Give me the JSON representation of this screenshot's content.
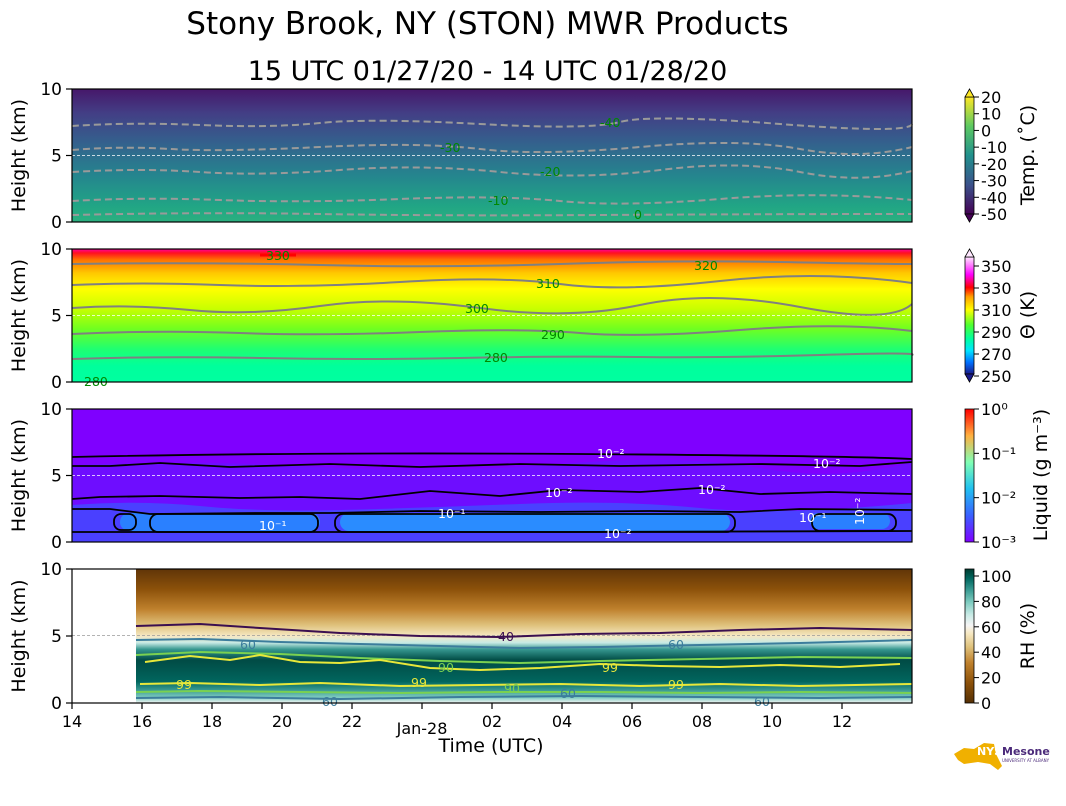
{
  "chart_data": [
    {
      "type": "heatmap",
      "name": "temperature",
      "title": "",
      "xlabel": "",
      "ylabel": "Height (km)",
      "ylim": [
        0,
        10
      ],
      "yticks": [
        "0",
        "5",
        "10"
      ],
      "colorbar_label": "Temp. (˚C)",
      "colorbar_ticks": [
        "20",
        "10",
        "0",
        "-10",
        "-20",
        "-30",
        "-40",
        "-50"
      ],
      "colorbar_range": [
        -50,
        20
      ],
      "contours": [
        {
          "label": "-40",
          "height_km": 7.3
        },
        {
          "label": "-30",
          "height_km": 5.5
        },
        {
          "label": "-20",
          "height_km": 3.8
        },
        {
          "label": "-10",
          "height_km": 1.5
        },
        {
          "label": "0",
          "height_km": 0.4
        }
      ]
    },
    {
      "type": "heatmap",
      "name": "potential_temperature",
      "ylabel": "Height (km)",
      "ylim": [
        0,
        10
      ],
      "yticks": [
        "0",
        "5",
        "10"
      ],
      "colorbar_label": "Θ (K)",
      "colorbar_ticks": [
        "350",
        "330",
        "310",
        "290",
        "270",
        "250"
      ],
      "colorbar_range": [
        250,
        360
      ],
      "contours": [
        {
          "label": "330",
          "height_km": 9.6
        },
        {
          "label": "320",
          "height_km": 8.8
        },
        {
          "label": "310",
          "height_km": 7.4
        },
        {
          "label": "300",
          "height_km": 5.5
        },
        {
          "label": "290",
          "height_km": 3.6
        },
        {
          "label": "280",
          "height_km": 1.9
        },
        {
          "label": "280",
          "height_km": 0.0
        }
      ]
    },
    {
      "type": "heatmap",
      "name": "liquid",
      "ylabel": "Height (km)",
      "ylim": [
        0,
        10
      ],
      "yticks": [
        "0",
        "5",
        "10"
      ],
      "colorbar_label": "Liquid (g m⁻³)",
      "colorbar_ticks": [
        "10⁰",
        "10⁻¹",
        "10⁻²",
        "10⁻³"
      ],
      "colorbar_scale": "log",
      "contour_labels": [
        "10⁻²",
        "10⁻²",
        "10⁻²",
        "10⁻²",
        "10⁻¹",
        "10⁻¹",
        "10⁻²",
        "10⁻¹",
        "10⁻²"
      ]
    },
    {
      "type": "heatmap",
      "name": "relative_humidity",
      "ylabel": "Height (km)",
      "ylim": [
        0,
        10
      ],
      "yticks": [
        "0",
        "5",
        "10"
      ],
      "xlabel": "Time (UTC)",
      "xticks": [
        "14",
        "16",
        "18",
        "20",
        "22",
        "Jan-28",
        "02",
        "04",
        "06",
        "08",
        "10",
        "12"
      ],
      "colorbar_label": "RH (%)",
      "colorbar_ticks": [
        "100",
        "80",
        "60",
        "40",
        "20",
        "0"
      ],
      "colorbar_range": [
        0,
        105
      ],
      "data_start": "16",
      "contour_labels": [
        "40",
        "60",
        "60",
        "90",
        "99",
        "99",
        "99",
        "99",
        "90",
        "60",
        "60",
        "60"
      ]
    }
  ],
  "figure": {
    "title": "Stony Brook, NY (STON) MWR Products",
    "subtitle": "15 UTC 01/27/20 - 14 UTC 01/28/20",
    "logo_text": "NYS Mesonet",
    "logo_subtext": "UNIVERSITY AT ALBANY",
    "colors": {
      "temp": [
        "#440154",
        "#3b528b",
        "#21908d",
        "#5dc962",
        "#fde725"
      ],
      "theta": [
        "#1a237e",
        "#00e5ff",
        "#00ffaa",
        "#7cfc00",
        "#ffff00",
        "#ff8c00",
        "#ff0000",
        "#ff00ff",
        "#ffe6ff"
      ],
      "liquid": [
        "#7f00ff",
        "#3060ff",
        "#20c0f0",
        "#80ffb0",
        "#ffb040",
        "#ff0000"
      ],
      "rh": [
        "#543005",
        "#8c510a",
        "#bf812d",
        "#dfc27d",
        "#f6e8c3",
        "#f5f5f5",
        "#c7eae5",
        "#80cdc1",
        "#35978f",
        "#01665e",
        "#003c30"
      ]
    }
  }
}
